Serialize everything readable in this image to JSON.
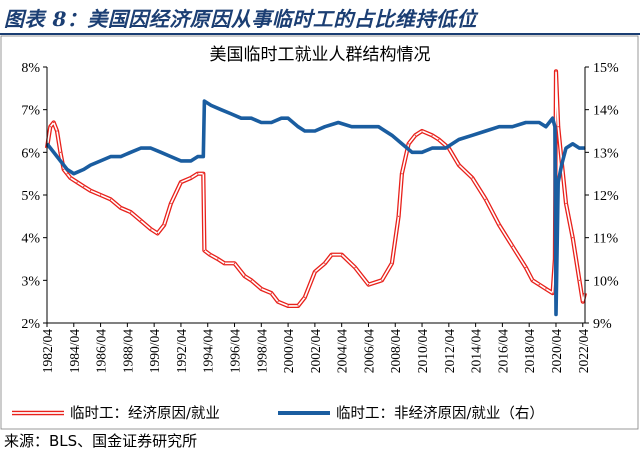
{
  "header": {
    "title": "图表 8：美国因经济原因从事临时工的占比维持低位"
  },
  "source_note": "来源：BLS、国金证券研究所",
  "colors": {
    "title": "#1b3e73",
    "series_economic": "#e8211b",
    "series_noneconomic": "#1a5da0"
  },
  "chart_data": {
    "type": "line",
    "title": "美国临时工就业人群结构情况",
    "xlabel": "",
    "ylabel_left": "",
    "ylabel_right": "",
    "x_start": "1982/04",
    "x_end": "2022/06",
    "x_tick_labels": [
      "1982/04",
      "1984/04",
      "1986/04",
      "1988/04",
      "1990/04",
      "1992/04",
      "1994/04",
      "1996/04",
      "1998/04",
      "2000/04",
      "2002/04",
      "2004/04",
      "2006/04",
      "2008/04",
      "2010/04",
      "2012/04",
      "2014/04",
      "2016/04",
      "2018/04",
      "2020/04",
      "2022/04"
    ],
    "ylim_left": [
      2,
      8
    ],
    "y_ticks_left": [
      "2%",
      "3%",
      "4%",
      "5%",
      "6%",
      "7%",
      "8%"
    ],
    "ylim_right": [
      9,
      15
    ],
    "y_ticks_right": [
      "9%",
      "10%",
      "11%",
      "12%",
      "13%",
      "14%",
      "15%"
    ],
    "grid": false,
    "legend_position": "bottom",
    "series": [
      {
        "name": "临时工：经济原因/就业",
        "axis": "left",
        "style": "double-line",
        "color": "#e8211b",
        "x": [
          "1982/04",
          "1982/07",
          "1982/10",
          "1983/01",
          "1983/04",
          "1983/07",
          "1983/10",
          "1984/01",
          "1984/07",
          "1985/01",
          "1985/07",
          "1986/04",
          "1987/01",
          "1987/10",
          "1988/07",
          "1989/04",
          "1990/01",
          "1990/07",
          "1991/01",
          "1991/07",
          "1992/04",
          "1993/01",
          "1993/07",
          "1993/12",
          "1994/01",
          "1994/06",
          "1995/01",
          "1995/07",
          "1996/04",
          "1997/01",
          "1997/07",
          "1998/04",
          "1999/01",
          "1999/07",
          "2000/04",
          "2001/01",
          "2001/07",
          "2002/04",
          "2003/01",
          "2003/07",
          "2004/04",
          "2005/04",
          "2006/04",
          "2007/04",
          "2008/01",
          "2008/07",
          "2008/10",
          "2009/04",
          "2009/10",
          "2010/04",
          "2011/01",
          "2011/07",
          "2012/04",
          "2013/01",
          "2014/01",
          "2015/01",
          "2016/01",
          "2017/01",
          "2018/01",
          "2018/07",
          "2019/01",
          "2019/07",
          "2020/01",
          "2020/03",
          "2020/04",
          "2020/06",
          "2020/09",
          "2021/01",
          "2021/07",
          "2022/01",
          "2022/04",
          "2022/06"
        ],
        "values": [
          6.1,
          6.6,
          6.7,
          6.5,
          6.0,
          5.6,
          5.5,
          5.4,
          5.3,
          5.2,
          5.1,
          5.0,
          4.9,
          4.7,
          4.6,
          4.4,
          4.2,
          4.1,
          4.3,
          4.8,
          5.3,
          5.4,
          5.5,
          5.5,
          3.7,
          3.6,
          3.5,
          3.4,
          3.4,
          3.1,
          3.0,
          2.8,
          2.7,
          2.5,
          2.4,
          2.4,
          2.6,
          3.2,
          3.4,
          3.6,
          3.6,
          3.3,
          2.9,
          3.0,
          3.4,
          4.5,
          5.5,
          6.2,
          6.4,
          6.5,
          6.4,
          6.3,
          6.1,
          5.7,
          5.4,
          4.9,
          4.3,
          3.8,
          3.3,
          3.0,
          2.9,
          2.8,
          2.7,
          3.5,
          7.9,
          6.6,
          5.8,
          4.8,
          4.0,
          3.0,
          2.5,
          2.7
        ]
      },
      {
        "name": "临时工：非经济原因/就业（右）",
        "axis": "right",
        "style": "thick-line",
        "color": "#1a5da0",
        "x": [
          "1982/04",
          "1982/10",
          "1983/04",
          "1983/10",
          "1984/04",
          "1985/01",
          "1985/07",
          "1986/04",
          "1987/01",
          "1987/10",
          "1988/07",
          "1989/04",
          "1990/01",
          "1990/10",
          "1991/07",
          "1992/04",
          "1993/01",
          "1993/07",
          "1993/12",
          "1994/01",
          "1994/07",
          "1995/04",
          "1996/01",
          "1996/10",
          "1997/07",
          "1998/04",
          "1999/01",
          "1999/10",
          "2000/04",
          "2001/01",
          "2001/07",
          "2002/04",
          "2003/01",
          "2004/01",
          "2005/01",
          "2006/01",
          "2007/01",
          "2008/01",
          "2008/10",
          "2009/07",
          "2010/04",
          "2011/01",
          "2012/01",
          "2013/01",
          "2014/01",
          "2015/01",
          "2016/01",
          "2017/01",
          "2018/01",
          "2019/01",
          "2019/07",
          "2020/01",
          "2020/03",
          "2020/04",
          "2020/06",
          "2020/09",
          "2021/01",
          "2021/07",
          "2022/01",
          "2022/06"
        ],
        "values": [
          13.2,
          13.0,
          12.8,
          12.6,
          12.5,
          12.6,
          12.7,
          12.8,
          12.9,
          12.9,
          13.0,
          13.1,
          13.1,
          13.0,
          12.9,
          12.8,
          12.8,
          12.9,
          12.9,
          14.2,
          14.1,
          14.0,
          13.9,
          13.8,
          13.8,
          13.7,
          13.7,
          13.8,
          13.8,
          13.6,
          13.5,
          13.5,
          13.6,
          13.7,
          13.6,
          13.6,
          13.6,
          13.4,
          13.2,
          13.0,
          13.0,
          13.1,
          13.1,
          13.3,
          13.4,
          13.5,
          13.6,
          13.6,
          13.7,
          13.7,
          13.6,
          13.8,
          13.6,
          9.2,
          12.3,
          12.7,
          13.1,
          13.2,
          13.1,
          13.1
        ]
      }
    ]
  }
}
